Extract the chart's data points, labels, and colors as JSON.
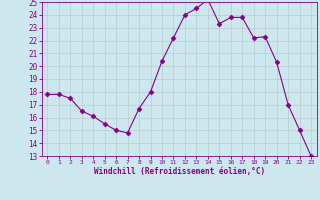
{
  "x": [
    0,
    1,
    2,
    3,
    4,
    5,
    6,
    7,
    8,
    9,
    10,
    11,
    12,
    13,
    14,
    15,
    16,
    17,
    18,
    19,
    20,
    21,
    22,
    23
  ],
  "y": [
    17.8,
    17.8,
    17.5,
    16.5,
    16.1,
    15.5,
    15.0,
    14.8,
    16.7,
    18.0,
    20.4,
    22.2,
    24.0,
    24.5,
    25.2,
    23.3,
    23.8,
    23.8,
    22.2,
    22.3,
    20.3,
    17.0,
    15.0,
    13.0
  ],
  "line_color": "#880088",
  "marker": "D",
  "marker_size": 2.5,
  "bg_color": "#cce8ee",
  "grid_color": "#bbcccc",
  "xlabel": "Windchill (Refroidissement éolien,°C)",
  "xlabel_color": "#880088",
  "tick_color": "#880088",
  "ylim": [
    13,
    25
  ],
  "xlim": [
    -0.5,
    23.5
  ],
  "yticks": [
    13,
    14,
    15,
    16,
    17,
    18,
    19,
    20,
    21,
    22,
    23,
    24,
    25
  ],
  "xticks": [
    0,
    1,
    2,
    3,
    4,
    5,
    6,
    7,
    8,
    9,
    10,
    11,
    12,
    13,
    14,
    15,
    16,
    17,
    18,
    19,
    20,
    21,
    22,
    23
  ]
}
